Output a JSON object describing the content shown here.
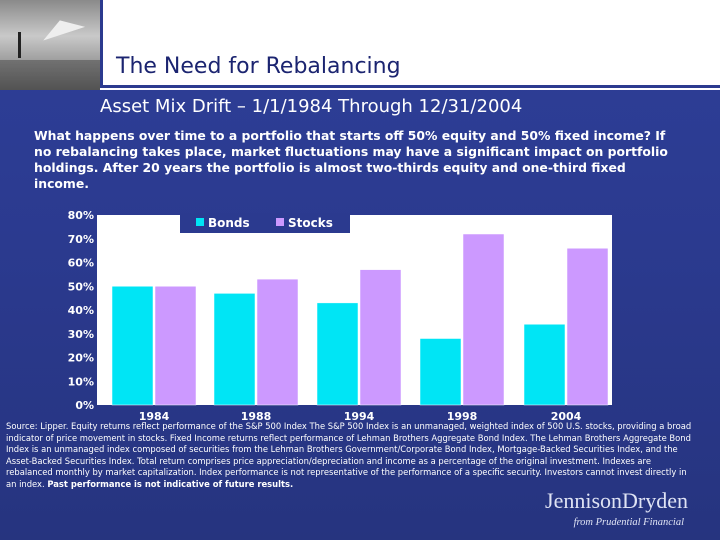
{
  "slide": {
    "title": "The Need for Rebalancing",
    "subtitle": "Asset Mix Drift – 1/1/1984 Through 12/31/2004",
    "intro": "What happens over time to a portfolio that starts off 50% equity and 50% fixed income? If no rebalancing takes place, market fluctuations may have a significant impact on portfolio holdings.  After 20 years the portfolio is almost two-thirds equity and one-third fixed income.",
    "source_text": "Source: Lipper. Equity returns reflect performance of the S&P 500 Index  The S&P 500 Index is an unmanaged, weighted index of 500 U.S. stocks, providing a broad indicator of price movement in stocks. Fixed Income returns reflect performance of Lehman Brothers Aggregate Bond Index. The Lehman Brothers Aggregate Bond Index is an unmanaged index composed of securities from the Lehman Brothers Government/Corporate Bond Index, Mortgage-Backed Securities Index, and the Asset-Backed Securities Index. Total return comprises price appreciation/depreciation and income as a percentage of the original investment. Indexes are rebalanced monthly by market capitalization. Index performance is not representative of the performance of a specific security. Investors cannot invest directly in an index.",
    "source_bold": "Past performance is not indicative of future results.",
    "brand_name": "JennisonDryden",
    "brand_sub": "from Prudential Financial"
  },
  "colors": {
    "background": "#2b3a8f",
    "bonds": "#00e5f5",
    "stocks": "#cc99ff",
    "plot_area": "#ffffff"
  },
  "chart_data": {
    "type": "bar",
    "categories": [
      "1984",
      "1988",
      "1994",
      "1998",
      "2004"
    ],
    "series": [
      {
        "name": "Bonds",
        "values": [
          50,
          47,
          43,
          28,
          34
        ],
        "labels": [
          "50%",
          "47%",
          "43%",
          "28%",
          "34%"
        ]
      },
      {
        "name": "Stocks",
        "values": [
          50,
          53,
          57,
          72,
          66
        ],
        "labels": [
          "50%",
          "53%",
          "57%",
          "72%",
          "66%"
        ]
      }
    ],
    "ylim": [
      0,
      80
    ],
    "yticks": [
      "0%",
      "10%",
      "20%",
      "30%",
      "40%",
      "50%",
      "60%",
      "70%",
      "80%"
    ],
    "grid": false,
    "legend": "top-left"
  }
}
